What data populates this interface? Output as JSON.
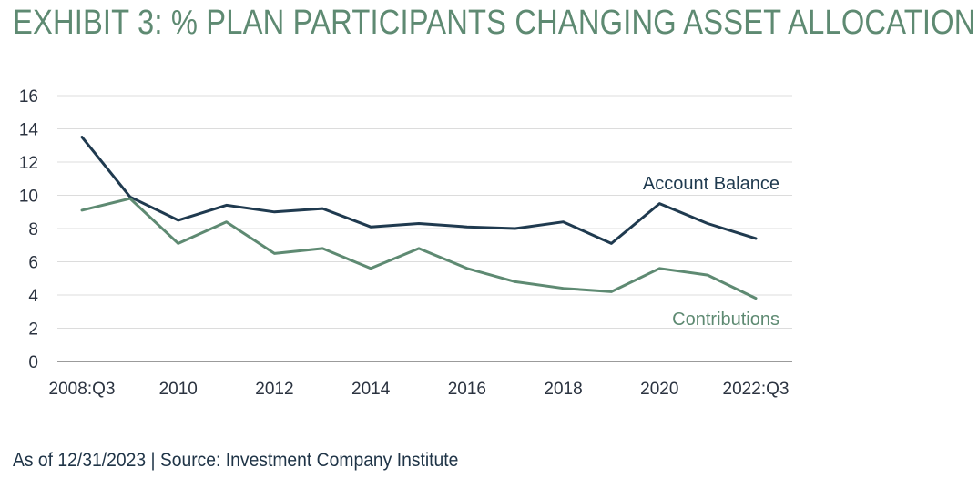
{
  "title": "EXHIBIT 3: % PLAN PARTICIPANTS CHANGING ASSET ALLOCATION",
  "source_note": "As of 12/31/2023 | Source: Investment Company Institute",
  "colors": {
    "title": "#5e8a72",
    "account_balance": "#1f3a4f",
    "contributions": "#5e8a72",
    "grid": "#dcdcdc",
    "axis": "#7a7a7a"
  },
  "chart_data": {
    "type": "line",
    "x": [
      "2008:Q3",
      "2009",
      "2010",
      "2011",
      "2012",
      "2013",
      "2014",
      "2015",
      "2016",
      "2017",
      "2018",
      "2019",
      "2020",
      "2021",
      "2022:Q3"
    ],
    "x_tick_labels": [
      "2008:Q3",
      "2010",
      "2012",
      "2014",
      "2016",
      "2018",
      "2020",
      "2022:Q3"
    ],
    "ylim": [
      0,
      16
    ],
    "y_ticks": [
      0,
      2,
      4,
      6,
      8,
      10,
      12,
      14,
      16
    ],
    "grid": true,
    "series": [
      {
        "name": "Account Balance",
        "values": [
          13.5,
          9.9,
          8.5,
          9.4,
          9.0,
          9.2,
          8.1,
          8.3,
          8.1,
          8.0,
          8.4,
          7.1,
          9.5,
          8.3,
          7.4
        ]
      },
      {
        "name": "Contributions",
        "values": [
          9.1,
          9.8,
          7.1,
          8.4,
          6.5,
          6.8,
          5.6,
          6.8,
          5.6,
          4.8,
          4.4,
          4.2,
          5.6,
          5.2,
          3.8
        ]
      }
    ]
  }
}
